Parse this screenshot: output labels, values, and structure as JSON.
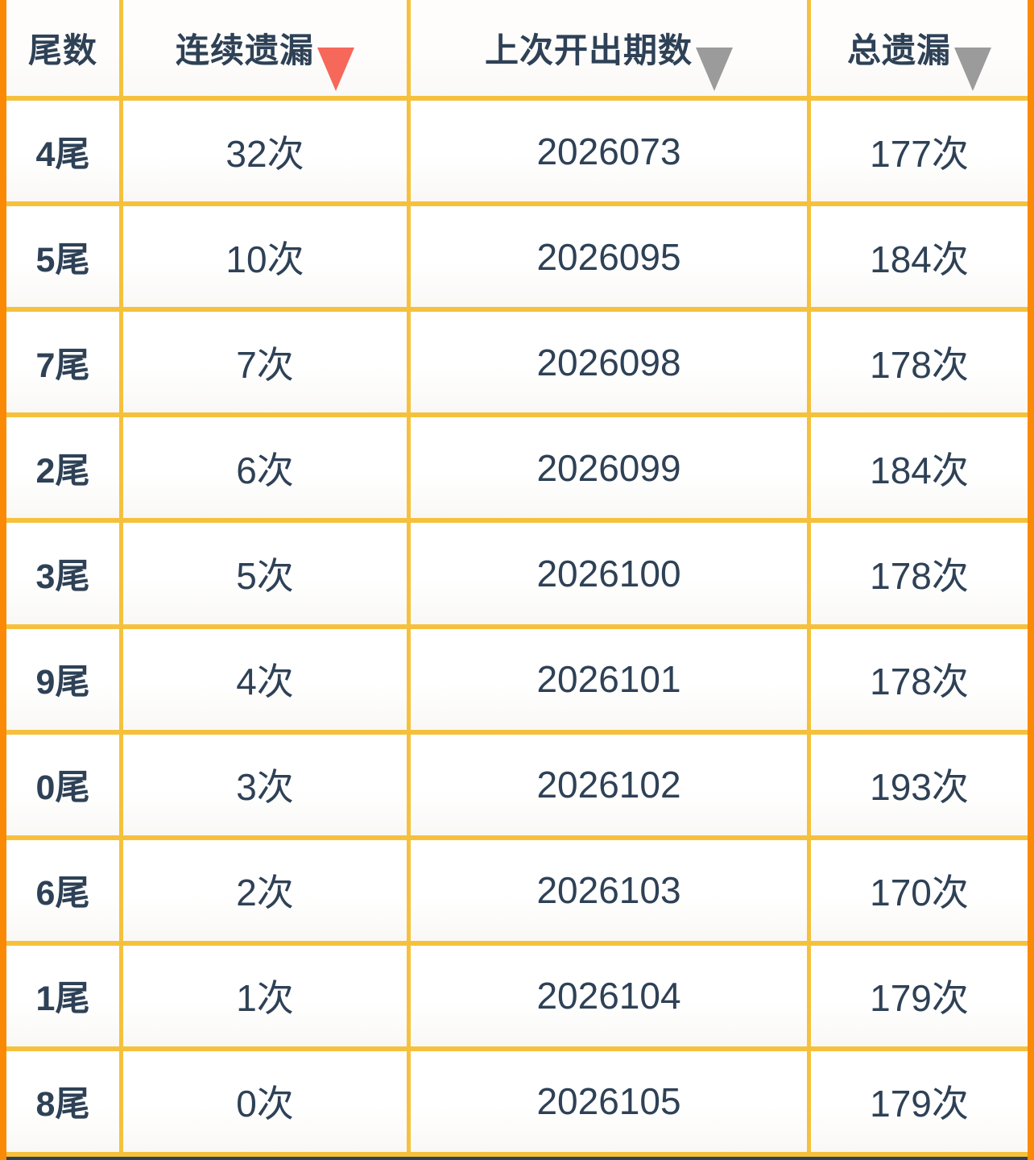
{
  "table": {
    "columns": [
      {
        "label": "尾数",
        "sort_icon": "none"
      },
      {
        "label": "连续遗漏",
        "sort_icon": "triangle-down-red"
      },
      {
        "label": "上次开出期数",
        "sort_icon": "triangle-down-gray"
      },
      {
        "label": "总遗漏",
        "sort_icon": "triangle-down-gray"
      }
    ],
    "rows": [
      {
        "tail": "4尾",
        "consecutive_miss": "32次",
        "last_draw_period": "2026073",
        "total_miss": "177次"
      },
      {
        "tail": "5尾",
        "consecutive_miss": "10次",
        "last_draw_period": "2026095",
        "total_miss": "184次"
      },
      {
        "tail": "7尾",
        "consecutive_miss": "7次",
        "last_draw_period": "2026098",
        "total_miss": "178次"
      },
      {
        "tail": "2尾",
        "consecutive_miss": "6次",
        "last_draw_period": "2026099",
        "total_miss": "184次"
      },
      {
        "tail": "3尾",
        "consecutive_miss": "5次",
        "last_draw_period": "2026100",
        "total_miss": "178次"
      },
      {
        "tail": "9尾",
        "consecutive_miss": "4次",
        "last_draw_period": "2026101",
        "total_miss": "178次"
      },
      {
        "tail": "0尾",
        "consecutive_miss": "3次",
        "last_draw_period": "2026102",
        "total_miss": "193次"
      },
      {
        "tail": "6尾",
        "consecutive_miss": "2次",
        "last_draw_period": "2026103",
        "total_miss": "170次"
      },
      {
        "tail": "1尾",
        "consecutive_miss": "1次",
        "last_draw_period": "2026104",
        "total_miss": "179次"
      },
      {
        "tail": "8尾",
        "consecutive_miss": "0次",
        "last_draw_period": "2026105",
        "total_miss": "179次"
      }
    ]
  },
  "colors": {
    "edge_orange": "#FA8A05",
    "accent_border": "#F5C13D",
    "sort_red": "#F5685A",
    "sort_gray": "#9B9B9B",
    "text_navy": "#2E4156"
  }
}
